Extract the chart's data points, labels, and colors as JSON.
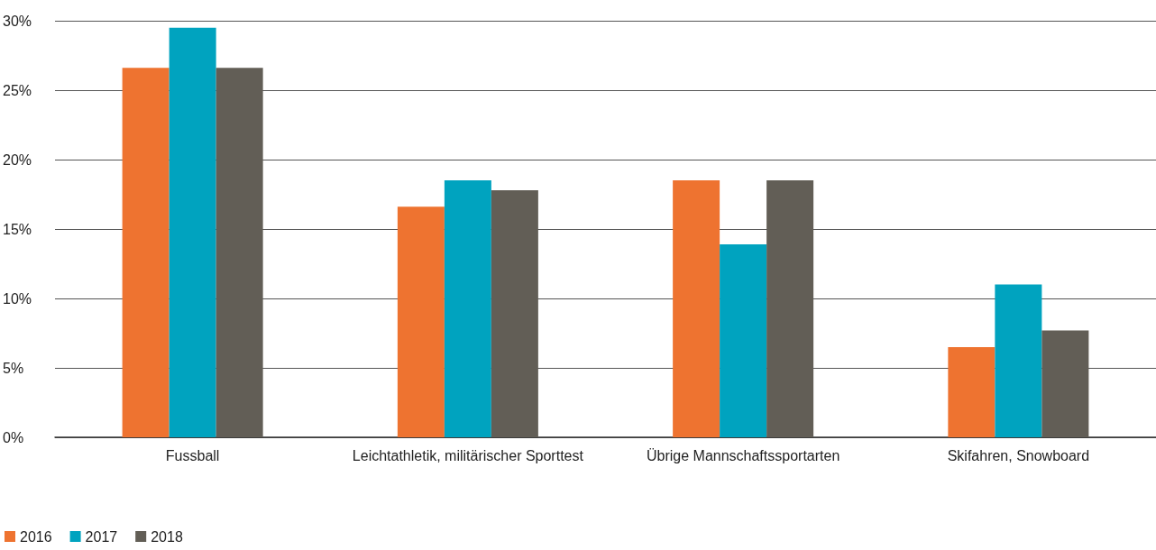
{
  "chart_data": {
    "type": "bar",
    "categories": [
      "Fussball",
      "Leichtathletik, militärischer Sporttest",
      "Übrige Mannschaftssportarten",
      "Skifahren, Snowboard"
    ],
    "series": [
      {
        "name": "2016",
        "color": "#ee7330",
        "values": [
          26.6,
          16.6,
          18.5,
          6.5
        ]
      },
      {
        "name": "2017",
        "color": "#00a3bf",
        "values": [
          29.5,
          18.5,
          13.9,
          11.0
        ]
      },
      {
        "name": "2018",
        "color": "#625e56",
        "values": [
          26.6,
          17.8,
          18.5,
          7.7
        ]
      }
    ],
    "ylim": [
      0,
      30
    ],
    "yticks": [
      {
        "value": 0,
        "label": "0%"
      },
      {
        "value": 5,
        "label": "5%"
      },
      {
        "value": 10,
        "label": "10%"
      },
      {
        "value": 15,
        "label": "15%"
      },
      {
        "value": 20,
        "label": "20%"
      },
      {
        "value": 25,
        "label": "25%"
      },
      {
        "value": 30,
        "label": "30%"
      }
    ],
    "grid": "y",
    "legend": "bottom left"
  }
}
